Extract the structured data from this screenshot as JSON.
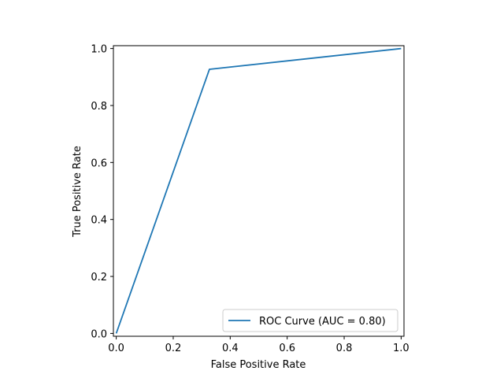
{
  "chart_data": {
    "type": "line",
    "title": "",
    "xlabel": "False Positive Rate",
    "ylabel": "True Positive Rate",
    "xlim": [
      -0.01,
      1.01
    ],
    "ylim": [
      -0.01,
      1.01
    ],
    "xticks": [
      0.0,
      0.2,
      0.4,
      0.6,
      0.8,
      1.0
    ],
    "yticks": [
      0.0,
      0.2,
      0.4,
      0.6,
      0.8,
      1.0
    ],
    "xtick_labels": [
      "0.0",
      "0.2",
      "0.4",
      "0.6",
      "0.8",
      "1.0"
    ],
    "ytick_labels": [
      "0.0",
      "0.2",
      "0.4",
      "0.6",
      "0.8",
      "1.0"
    ],
    "grid": false,
    "legend_position": "lower-right",
    "series": [
      {
        "name": "ROC Curve (AUC = 0.80)",
        "color": "#1f77b4",
        "x": [
          0.0,
          0.327,
          1.0
        ],
        "y": [
          0.0,
          0.927,
          1.0
        ]
      }
    ]
  }
}
